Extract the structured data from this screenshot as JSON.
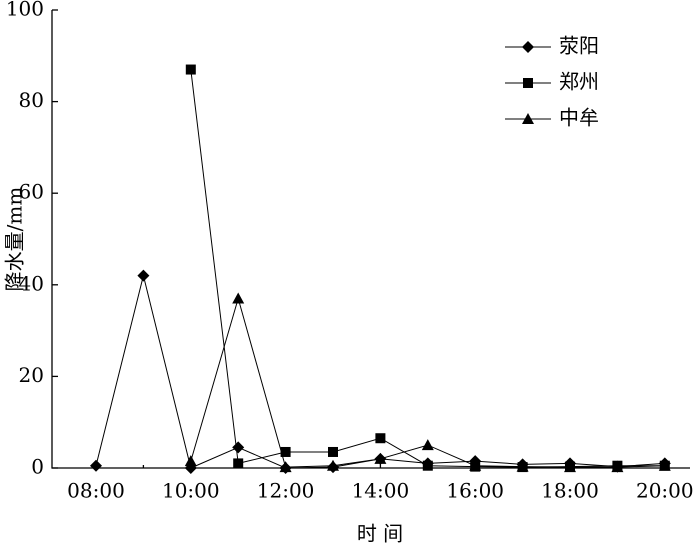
{
  "chart_data": {
    "type": "line",
    "x_label": "时 间",
    "y_label": "降水量/mm",
    "categories": [
      "08:00",
      null,
      "10:00",
      null,
      "12:00",
      null,
      "14:00",
      null,
      "16:00",
      null,
      "18:00",
      null,
      "20:00"
    ],
    "series": [
      {
        "name": "荥阳",
        "color": "#000000",
        "marker": "diamond",
        "values": [
          0.5,
          42,
          0,
          4.5,
          0,
          0.2,
          2,
          1,
          1.5,
          0.8,
          1,
          0.3,
          1
        ]
      },
      {
        "name": "郑州",
        "color": "#000000",
        "marker": "square",
        "values": [
          null,
          null,
          87,
          1,
          3.5,
          3.5,
          6.5,
          0.5,
          0.3,
          0.2,
          0.3,
          0.5,
          0.5
        ]
      },
      {
        "name": "中牟",
        "color": "#000000",
        "marker": "triangle",
        "values": [
          null,
          null,
          1.5,
          37,
          0.2,
          0.5,
          2,
          5,
          0.5,
          0.3,
          0.2,
          0.2,
          0.5
        ]
      }
    ],
    "ylim": [
      0,
      100
    ],
    "yticks": [
      0,
      20,
      40,
      60,
      80,
      100
    ],
    "grid": false,
    "legend": "upper right"
  }
}
